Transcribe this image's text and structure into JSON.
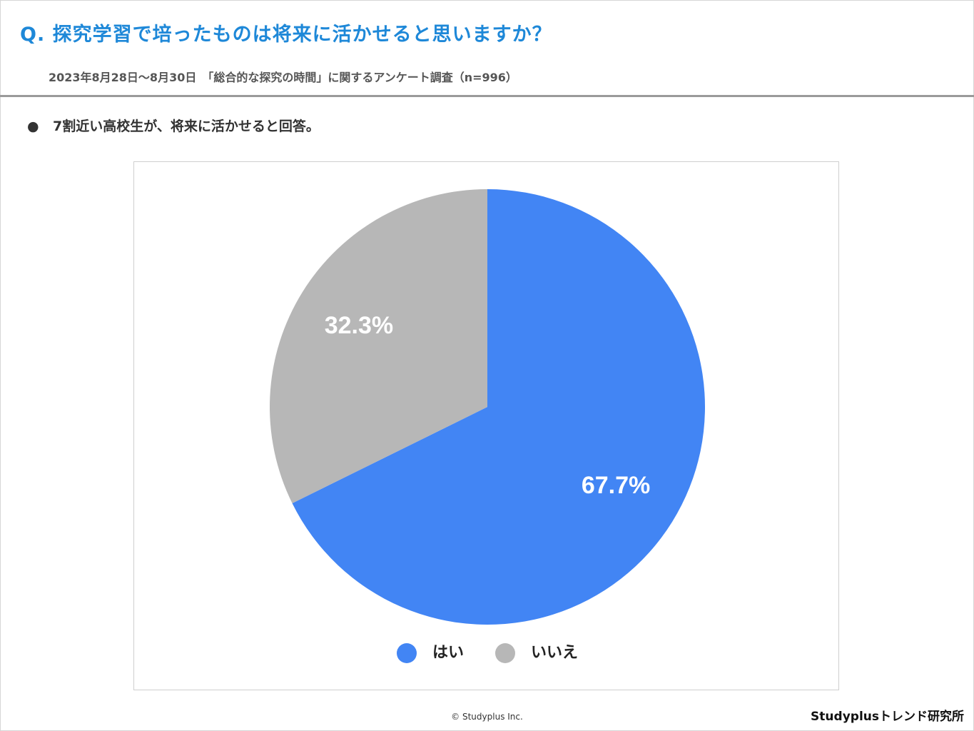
{
  "header": {
    "title": "Q. 探究学習で培ったものは将来に活かせると思いますか？",
    "survey_info": "2023年8月28日～8月30日　「総合的な探究の時間」に関するアンケート調査（n=996）"
  },
  "summary": {
    "bullet": "●",
    "text": "7割近い高校生が、将来に活かせると回答。"
  },
  "chart_data": {
    "type": "pie",
    "categories": [
      "はい",
      "いいえ"
    ],
    "values": [
      67.7,
      32.3
    ],
    "labels": [
      "67.7%",
      "32.3%"
    ],
    "colors": [
      "#4285f4",
      "#b7b7b7"
    ],
    "start_angle": "12 o'clock",
    "direction": "clockwise",
    "legend_position": "bottom"
  },
  "footer": {
    "copyright": "© Studyplus Inc.",
    "brand": "Studyplusトレンド研究所"
  }
}
